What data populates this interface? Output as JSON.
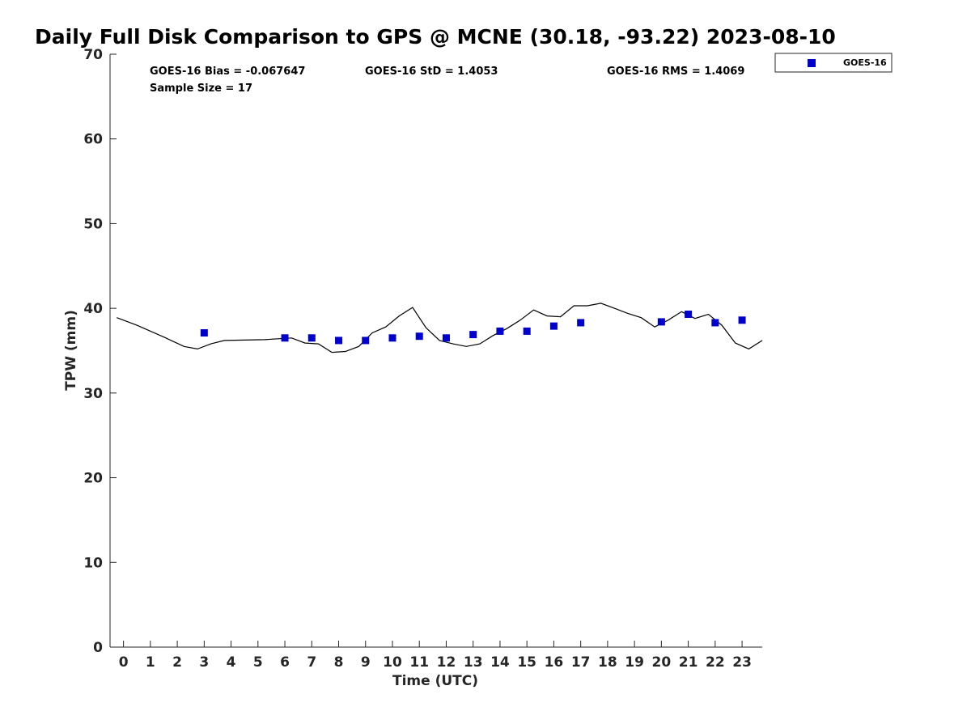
{
  "chart_data": {
    "type": "scatter",
    "title": "Daily Full Disk Comparison to GPS @ MCNE (30.18, -93.22) 2023-08-10",
    "xlabel": "Time (UTC)",
    "ylabel": "TPW (mm)",
    "xlim": [
      -0.5,
      23.75
    ],
    "ylim": [
      0,
      70
    ],
    "x_ticks": [
      0,
      1,
      2,
      3,
      4,
      5,
      6,
      7,
      8,
      9,
      10,
      11,
      12,
      13,
      14,
      15,
      16,
      17,
      18,
      19,
      20,
      21,
      22,
      23
    ],
    "y_ticks": [
      0,
      10,
      20,
      30,
      40,
      50,
      60,
      70
    ],
    "grid": false,
    "legend_position": "outside-top-right",
    "stats": {
      "bias": "GOES-16 Bias = -0.067647",
      "std": "GOES-16 StD = 1.4053",
      "rms": "GOES-16 RMS = 1.4069",
      "sample": "Sample Size = 17"
    },
    "series": [
      {
        "name": "GOES-16",
        "kind": "markers",
        "color": "#0000cc",
        "x": [
          3,
          6,
          7,
          8,
          9,
          10,
          11,
          12,
          13,
          14,
          15,
          16,
          17,
          20,
          21,
          22,
          23
        ],
        "y": [
          37.1,
          36.5,
          36.5,
          36.2,
          36.2,
          36.5,
          36.7,
          36.5,
          36.9,
          37.3,
          37.3,
          37.9,
          38.3,
          38.4,
          39.3,
          38.3,
          38.6
        ]
      },
      {
        "kind": "line",
        "color": "#000000",
        "x": [
          -0.25,
          0.5,
          1.5,
          2.25,
          2.75,
          3.25,
          3.75,
          5.25,
          5.75,
          6.25,
          6.75,
          7.25,
          7.75,
          8.25,
          8.75,
          9.25,
          9.75,
          10.25,
          10.75,
          11.25,
          11.75,
          12.25,
          12.75,
          13.25,
          13.75,
          14.25,
          14.75,
          15.25,
          15.75,
          16.25,
          16.75,
          17.25,
          17.75,
          18.25,
          18.75,
          19.25,
          19.75,
          20.25,
          20.75,
          21.25,
          21.75,
          22.25,
          22.75,
          23.25,
          23.75
        ],
        "y": [
          38.9,
          38.0,
          36.6,
          35.5,
          35.2,
          35.8,
          36.2,
          36.3,
          36.4,
          36.5,
          35.9,
          35.8,
          34.8,
          34.9,
          35.5,
          37.1,
          37.8,
          39.1,
          40.1,
          37.7,
          36.2,
          35.8,
          35.5,
          35.8,
          36.8,
          37.6,
          38.6,
          39.8,
          39.1,
          39.0,
          40.3,
          40.3,
          40.6,
          40.0,
          39.4,
          38.9,
          37.8,
          38.6,
          39.6,
          38.8,
          39.3,
          38.0,
          35.9,
          35.2,
          36.2
        ]
      }
    ]
  },
  "legend": {
    "label": "GOES-16",
    "marker_color": "#0000cc"
  }
}
